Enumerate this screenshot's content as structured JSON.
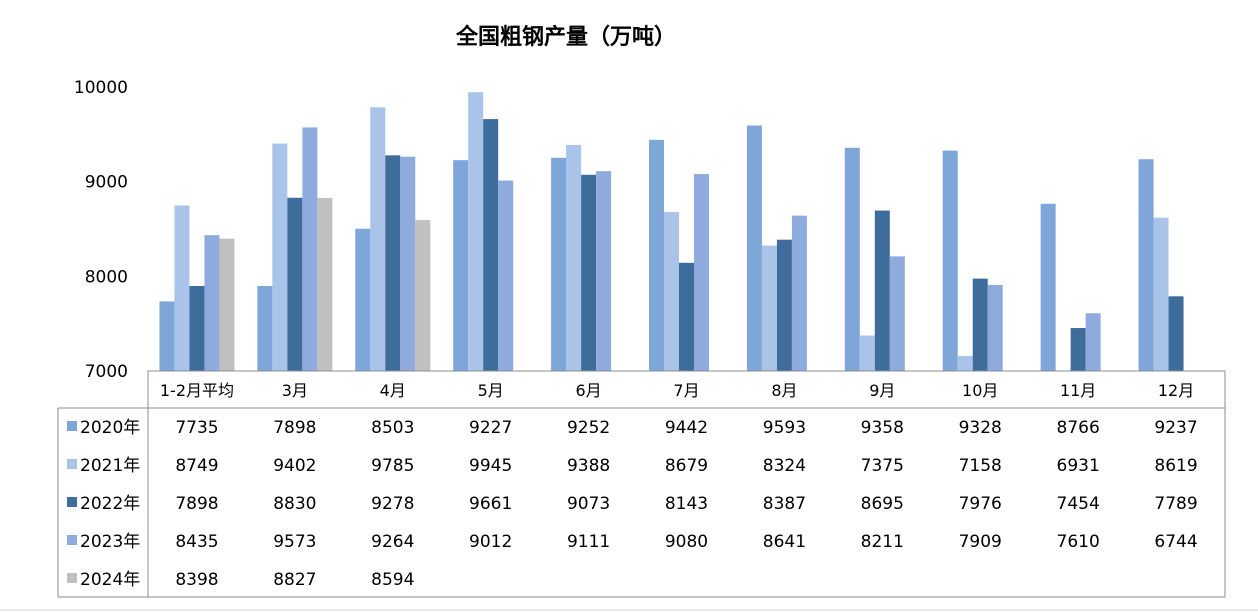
{
  "chart_data": {
    "type": "bar",
    "title": "全国粗钢产量（万吨）",
    "xlabel": "",
    "ylabel": "",
    "ylim": [
      7000,
      10000
    ],
    "yticks": [
      "10000",
      "9000",
      "8000",
      "7000"
    ],
    "categories": [
      "1-2月平均",
      "3月",
      "4月",
      "5月",
      "6月",
      "7月",
      "8月",
      "9月",
      "10月",
      "11月",
      "12月"
    ],
    "grid": false,
    "legend": "data-table",
    "series": [
      {
        "name": "2020年",
        "color": "#7FA6D8",
        "values": [
          7735,
          7898,
          8503,
          9227,
          9252,
          9442,
          9593,
          9358,
          9328,
          8766,
          9237
        ]
      },
      {
        "name": "2021年",
        "color": "#A9C4E8",
        "values": [
          8749,
          9402,
          9785,
          9945,
          9388,
          8679,
          8324,
          7375,
          7158,
          6931,
          8619
        ]
      },
      {
        "name": "2022年",
        "color": "#3F6D9B",
        "values": [
          7898,
          8830,
          9278,
          9661,
          9073,
          8143,
          8387,
          8695,
          7976,
          7454,
          7789
        ]
      },
      {
        "name": "2023年",
        "color": "#8FAADC",
        "values": [
          8435,
          9573,
          9264,
          9012,
          9111,
          9080,
          8641,
          8211,
          7909,
          7610,
          6744
        ]
      },
      {
        "name": "2024年",
        "color": "#C0C0C0",
        "values": [
          8398,
          8827,
          8594,
          null,
          null,
          null,
          null,
          null,
          null,
          null,
          null
        ]
      }
    ]
  }
}
